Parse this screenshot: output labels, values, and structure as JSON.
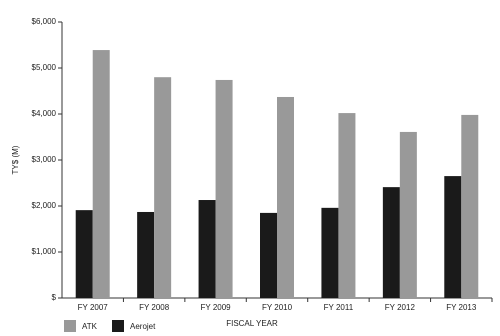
{
  "chart_data": {
    "type": "bar",
    "y_label": "TY$ (M)",
    "x_label": "FISCAL YEAR",
    "categories": [
      "FY 2007",
      "FY 2008",
      "FY 2009",
      "FY 2010",
      "FY 2011",
      "FY 2012",
      "FY 2013"
    ],
    "series": [
      {
        "name": "Aerojet",
        "color": "#1a1a1a",
        "values": [
          1910,
          1870,
          2130,
          1850,
          1960,
          2410,
          2650
        ]
      },
      {
        "name": "ATK",
        "color": "#999999",
        "values": [
          5390,
          4800,
          4740,
          4370,
          4020,
          3610,
          3980
        ]
      }
    ],
    "legend_order": [
      "ATK",
      "Aerojet"
    ],
    "ylim": [
      0,
      6000
    ],
    "yticks": [
      {
        "value": 0,
        "label": "$"
      },
      {
        "value": 1000,
        "label": "$1,000"
      },
      {
        "value": 2000,
        "label": "$2,000"
      },
      {
        "value": 3000,
        "label": "$3,000"
      },
      {
        "value": 4000,
        "label": "$4,000"
      },
      {
        "value": 5000,
        "label": "$5,000"
      },
      {
        "value": 6000,
        "label": "$6,000"
      }
    ],
    "grid": false
  }
}
